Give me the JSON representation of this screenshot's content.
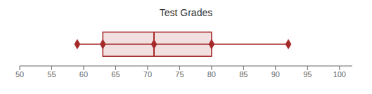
{
  "chart_data": {
    "type": "box",
    "title": "Test Grades",
    "min": 59,
    "q1": 63,
    "median": 71,
    "q3": 80,
    "max": 92,
    "xlim": [
      50,
      102
    ],
    "xticks": [
      50,
      55,
      60,
      65,
      70,
      75,
      80,
      85,
      90,
      95,
      100
    ],
    "color": "#a52a2a"
  }
}
